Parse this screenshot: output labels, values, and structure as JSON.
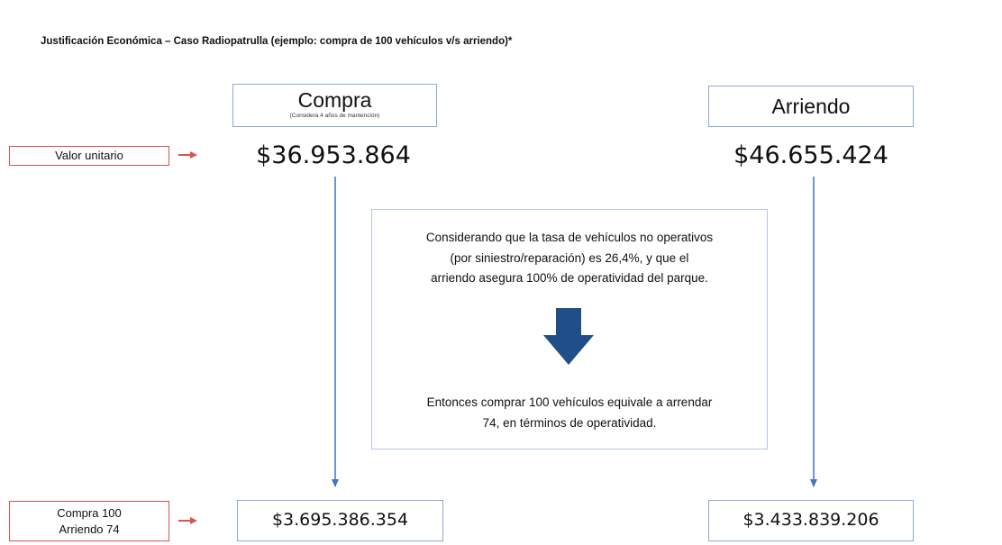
{
  "title": "Justificación Económica – Caso Radiopatrulla (ejemplo: compra de 100 vehículos v/s arriendo)*",
  "compra": {
    "label": "Compra",
    "note": "(Considera 4 años de mantención)",
    "unit_value": "$36.953.864",
    "total": "$3.695.386.354"
  },
  "arriendo": {
    "label": "Arriendo",
    "unit_value": "$46.655.424",
    "total": "$3.433.839.206"
  },
  "row_labels": {
    "unit": "Valor unitario",
    "total": [
      "Compra 100",
      "Arriendo 74"
    ]
  },
  "center": {
    "premise": [
      "Considerando que la tasa de vehículos no operativos",
      "(por siniestro/reparación) es 26,4%, y que el",
      "arriendo asegura 100% de operatividad del parque."
    ],
    "conclusion": [
      "Entonces comprar 100 vehículos equivale a arrendar",
      "74, en términos de operatividad."
    ]
  }
}
